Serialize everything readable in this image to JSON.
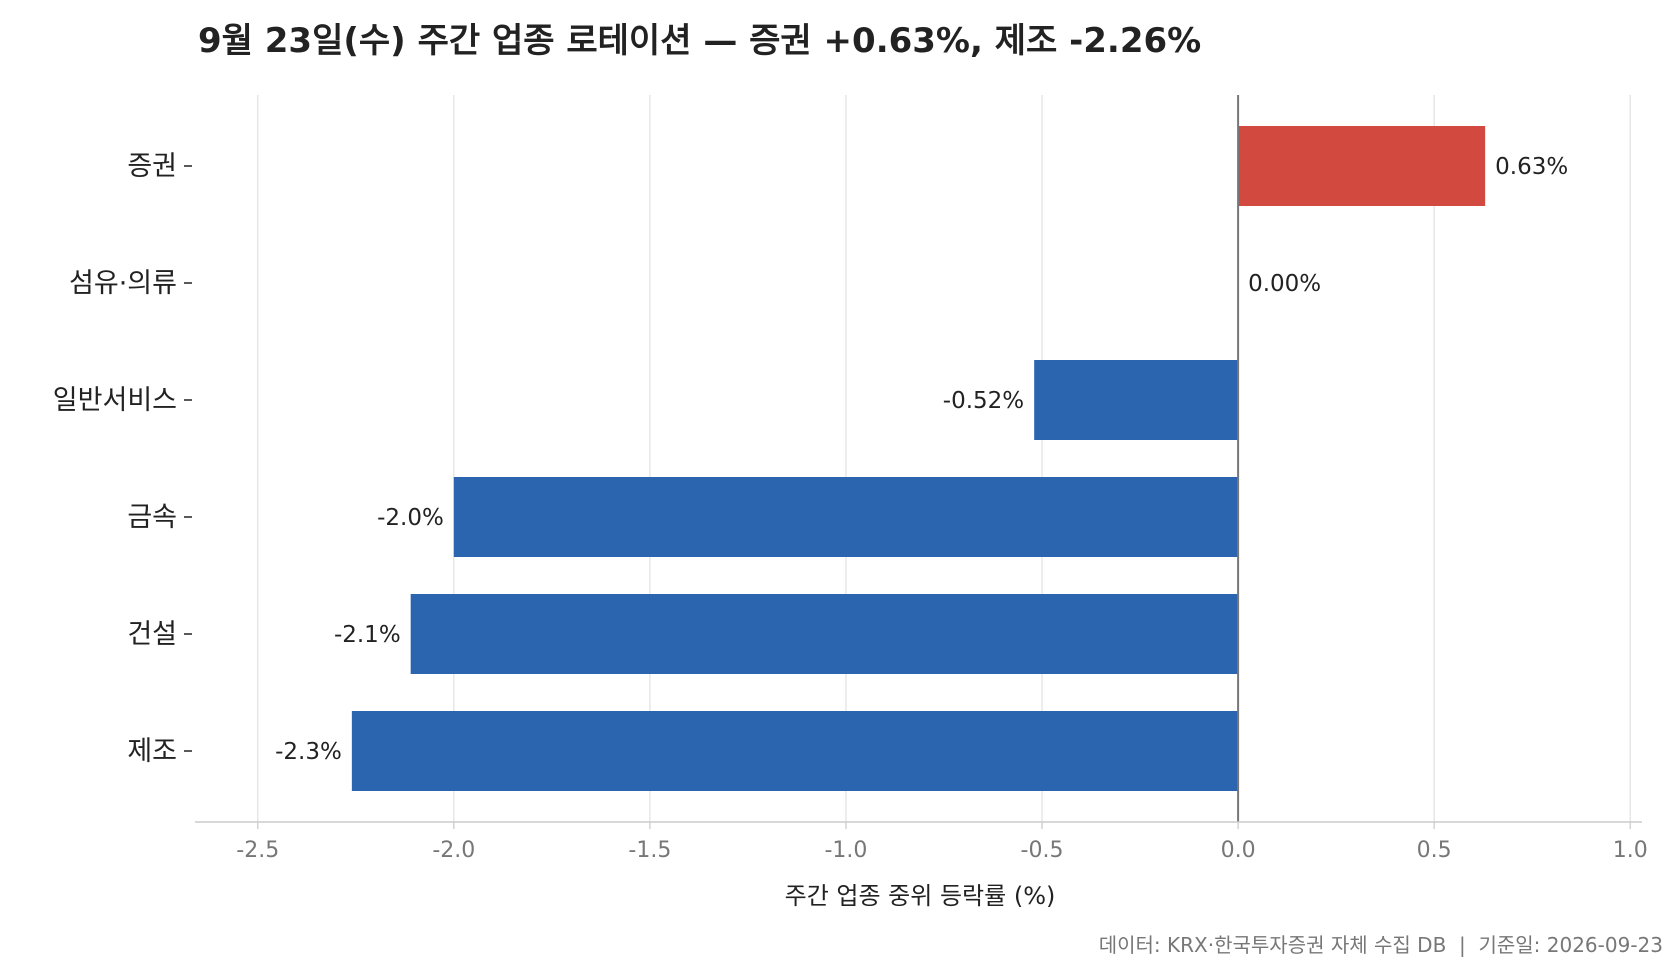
{
  "chart_data": {
    "type": "bar",
    "orientation": "horizontal",
    "title": "9월 23일(수) 주간 업종 로테이션 — 증권 +0.63%, 제조 -2.26%",
    "xlabel": "주간 업종 중위 등락률 (%)",
    "ylabel": "",
    "categories": [
      "증권",
      "섬유·의류",
      "일반서비스",
      "금속",
      "건설",
      "제조"
    ],
    "values": [
      0.63,
      0.0,
      -0.52,
      -2.0,
      -2.11,
      -2.26
    ],
    "value_labels": [
      "0.63%",
      "0.00%",
      "-0.52%",
      "-2.0%",
      "-2.1%",
      "-2.3%"
    ],
    "xlim": [
      -2.66,
      1.03
    ],
    "xticks": [
      -2.5,
      -2.0,
      -1.5,
      -1.0,
      -0.5,
      0.0,
      0.5,
      1.0
    ],
    "xtick_labels": [
      "-2.5",
      "-2.0",
      "-1.5",
      "-1.0",
      "-0.5",
      "0.0",
      "0.5",
      "1.0"
    ],
    "grid": "vertical",
    "colors": {
      "positive": "#d24a3f",
      "negative": "#2b64af",
      "zero_line": "#777777",
      "grid": "#e3e3e3",
      "axis": "#cccccc"
    },
    "footnote": "데이터: KRX·한국투자증권 자체 수집 DB  |  기준일: 2026-09-23"
  }
}
